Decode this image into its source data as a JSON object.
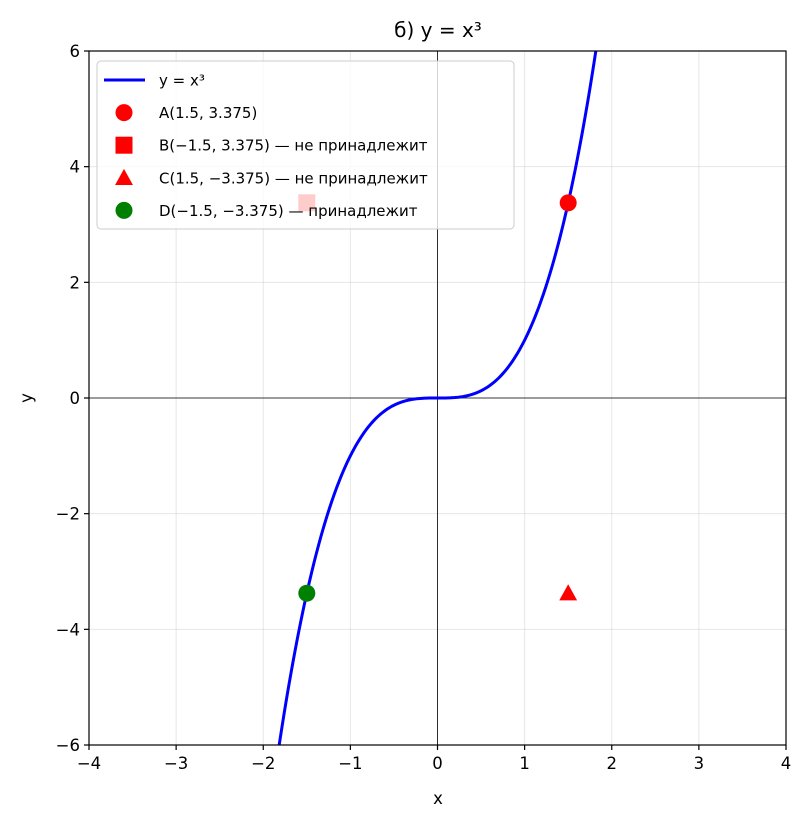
{
  "chart_data": {
    "type": "line",
    "title": "б) y = x³",
    "xlabel": "x",
    "ylabel": "y",
    "xlim": [
      -4,
      4
    ],
    "ylim": [
      -6,
      6
    ],
    "xticks": [
      -4,
      -3,
      -2,
      -1,
      0,
      1,
      2,
      3,
      4
    ],
    "yticks": [
      -6,
      -4,
      -2,
      0,
      2,
      4,
      6
    ],
    "xtick_labels": [
      "−4",
      "−3",
      "−2",
      "−1",
      "0",
      "1",
      "2",
      "3",
      "4"
    ],
    "ytick_labels": [
      "−6",
      "−4",
      "−2",
      "0",
      "2",
      "4",
      "6"
    ],
    "grid": true,
    "zero_lines": true,
    "legend_position": "top-left",
    "series": [
      {
        "name": "y = x³",
        "kind": "line",
        "function": "x^3",
        "x_range": [
          -4,
          4
        ],
        "color": "#0000ff"
      },
      {
        "name": "A(1.5,  3.375)",
        "kind": "point",
        "x": 1.5,
        "y": 3.375,
        "marker": "circle",
        "color": "#ff0000"
      },
      {
        "name": "B(−1.5,  3.375) — не принадлежит",
        "kind": "point",
        "x": -1.5,
        "y": 3.375,
        "marker": "square",
        "color": "#ff0000"
      },
      {
        "name": "C(1.5,  −3.375) — не принадлежит",
        "kind": "point",
        "x": 1.5,
        "y": -3.375,
        "marker": "triangle",
        "color": "#ff0000"
      },
      {
        "name": "D(−1.5,  −3.375) — принадлежит",
        "kind": "point",
        "x": -1.5,
        "y": -3.375,
        "marker": "circle",
        "color": "#008000"
      }
    ]
  }
}
